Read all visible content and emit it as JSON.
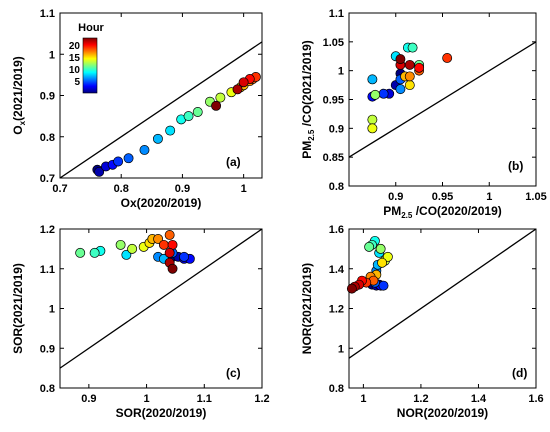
{
  "chart_data": [
    {
      "type": "scatter",
      "panel_label": "(a)",
      "xlabel": "Ox(2020/2019)",
      "ylabel": "O_x(2021/2019)",
      "xlim": [
        0.7,
        1.03
      ],
      "ylim": [
        0.7,
        1.1
      ],
      "xticks": [
        "0.7",
        "0.8",
        "0.9",
        "1"
      ],
      "yticks": [
        "0.7",
        "0.8",
        "0.9",
        "1",
        "1.1"
      ],
      "reference_line": "1:1",
      "colorbar": {
        "title": "Hour",
        "range": [
          0,
          23
        ],
        "ticks": [
          "5",
          "10",
          "15",
          "20"
        ],
        "colormap": [
          "#00007f",
          "#0000ff",
          "#007fff",
          "#00ffff",
          "#7fff7f",
          "#ffff00",
          "#ff7f00",
          "#ff0000",
          "#7f0000"
        ]
      },
      "points": [
        {
          "x": 0.761,
          "y": 0.72,
          "hour": 0
        },
        {
          "x": 0.764,
          "y": 0.715,
          "hour": 1
        },
        {
          "x": 0.775,
          "y": 0.728,
          "hour": 2
        },
        {
          "x": 0.786,
          "y": 0.732,
          "hour": 3
        },
        {
          "x": 0.795,
          "y": 0.74,
          "hour": 4
        },
        {
          "x": 0.812,
          "y": 0.748,
          "hour": 5
        },
        {
          "x": 0.838,
          "y": 0.768,
          "hour": 6
        },
        {
          "x": 0.86,
          "y": 0.795,
          "hour": 7
        },
        {
          "x": 0.88,
          "y": 0.815,
          "hour": 8
        },
        {
          "x": 0.898,
          "y": 0.842,
          "hour": 9
        },
        {
          "x": 0.91,
          "y": 0.85,
          "hour": 10
        },
        {
          "x": 0.925,
          "y": 0.86,
          "hour": 11
        },
        {
          "x": 0.945,
          "y": 0.885,
          "hour": 12
        },
        {
          "x": 0.962,
          "y": 0.895,
          "hour": 13
        },
        {
          "x": 0.98,
          "y": 0.908,
          "hour": 14
        },
        {
          "x": 0.995,
          "y": 0.92,
          "hour": 15
        },
        {
          "x": 1.0,
          "y": 0.925,
          "hour": 16
        },
        {
          "x": 1.01,
          "y": 0.935,
          "hour": 17
        },
        {
          "x": 1.015,
          "y": 0.94,
          "hour": 18
        },
        {
          "x": 1.02,
          "y": 0.945,
          "hour": 19
        },
        {
          "x": 1.01,
          "y": 0.94,
          "hour": 20
        },
        {
          "x": 1.0,
          "y": 0.932,
          "hour": 21
        },
        {
          "x": 0.99,
          "y": 0.915,
          "hour": 22
        },
        {
          "x": 0.955,
          "y": 0.875,
          "hour": 23
        }
      ]
    },
    {
      "type": "scatter",
      "panel_label": "(b)",
      "xlabel": "PM_2.5 /CO(2020/2019)",
      "ylabel": "PM_2.5 /CO(2021/2019)",
      "xlim": [
        0.85,
        1.05
      ],
      "ylim": [
        0.8,
        1.1
      ],
      "xticks": [
        "0.9",
        "0.95",
        "1",
        "1.05"
      ],
      "yticks": [
        "0.8",
        "0.85",
        "0.9",
        "0.95",
        "1",
        "1.05",
        "1.1"
      ],
      "reference_line": "1:1",
      "points": [
        {
          "x": 0.905,
          "y": 0.995,
          "hour": 0
        },
        {
          "x": 0.9,
          "y": 0.975,
          "hour": 1
        },
        {
          "x": 0.893,
          "y": 0.96,
          "hour": 2
        },
        {
          "x": 0.875,
          "y": 0.955,
          "hour": 3
        },
        {
          "x": 0.887,
          "y": 0.96,
          "hour": 4
        },
        {
          "x": 0.905,
          "y": 0.985,
          "hour": 5
        },
        {
          "x": 0.905,
          "y": 0.968,
          "hour": 6
        },
        {
          "x": 0.875,
          "y": 0.985,
          "hour": 7
        },
        {
          "x": 0.9,
          "y": 1.025,
          "hour": 8
        },
        {
          "x": 0.913,
          "y": 1.04,
          "hour": 9
        },
        {
          "x": 0.918,
          "y": 1.04,
          "hour": 10
        },
        {
          "x": 0.925,
          "y": 1.01,
          "hour": 11
        },
        {
          "x": 0.878,
          "y": 0.958,
          "hour": 12
        },
        {
          "x": 0.875,
          "y": 0.915,
          "hour": 13
        },
        {
          "x": 0.875,
          "y": 0.9,
          "hour": 14
        },
        {
          "x": 0.915,
          "y": 0.975,
          "hour": 15
        },
        {
          "x": 0.91,
          "y": 0.99,
          "hour": 16
        },
        {
          "x": 0.915,
          "y": 0.99,
          "hour": 17
        },
        {
          "x": 0.925,
          "y": 1.0,
          "hour": 18
        },
        {
          "x": 0.955,
          "y": 1.022,
          "hour": 19
        },
        {
          "x": 0.925,
          "y": 1.005,
          "hour": 20
        },
        {
          "x": 0.905,
          "y": 1.01,
          "hour": 21
        },
        {
          "x": 0.915,
          "y": 1.01,
          "hour": 22
        },
        {
          "x": 0.905,
          "y": 1.02,
          "hour": 23
        }
      ]
    },
    {
      "type": "scatter",
      "panel_label": "(c)",
      "xlabel": "SOR(2020/2019)",
      "ylabel": "SOR(2021/2019)",
      "xlim": [
        0.85,
        1.2
      ],
      "ylim": [
        0.8,
        1.2
      ],
      "xticks": [
        "0.9",
        "1",
        "1.1",
        "1.2"
      ],
      "yticks": [
        "0.8",
        "0.9",
        "1",
        "1.1",
        "1.2"
      ],
      "reference_line": "1:1",
      "points": [
        {
          "x": 1.045,
          "y": 1.13,
          "hour": 0
        },
        {
          "x": 1.055,
          "y": 1.13,
          "hour": 1
        },
        {
          "x": 1.065,
          "y": 1.125,
          "hour": 2
        },
        {
          "x": 1.075,
          "y": 1.125,
          "hour": 3
        },
        {
          "x": 1.065,
          "y": 1.13,
          "hour": 4
        },
        {
          "x": 1.045,
          "y": 1.14,
          "hour": 5
        },
        {
          "x": 1.02,
          "y": 1.13,
          "hour": 6
        },
        {
          "x": 1.03,
          "y": 1.125,
          "hour": 7
        },
        {
          "x": 0.965,
          "y": 1.135,
          "hour": 8
        },
        {
          "x": 0.92,
          "y": 1.145,
          "hour": 9
        },
        {
          "x": 0.91,
          "y": 1.14,
          "hour": 10
        },
        {
          "x": 0.885,
          "y": 1.14,
          "hour": 11
        },
        {
          "x": 0.955,
          "y": 1.16,
          "hour": 12
        },
        {
          "x": 0.975,
          "y": 1.15,
          "hour": 13
        },
        {
          "x": 0.995,
          "y": 1.155,
          "hour": 14
        },
        {
          "x": 1.005,
          "y": 1.165,
          "hour": 15
        },
        {
          "x": 1.01,
          "y": 1.175,
          "hour": 16
        },
        {
          "x": 1.02,
          "y": 1.175,
          "hour": 17
        },
        {
          "x": 1.04,
          "y": 1.185,
          "hour": 18
        },
        {
          "x": 1.03,
          "y": 1.16,
          "hour": 19
        },
        {
          "x": 1.045,
          "y": 1.16,
          "hour": 20
        },
        {
          "x": 1.04,
          "y": 1.14,
          "hour": 21
        },
        {
          "x": 1.04,
          "y": 1.115,
          "hour": 22
        },
        {
          "x": 1.045,
          "y": 1.1,
          "hour": 23
        }
      ]
    },
    {
      "type": "scatter",
      "panel_label": "(d)",
      "xlabel": "NOR(2020/2019)",
      "ylabel": "NOR(2021/2019)",
      "xlim": [
        0.95,
        1.6
      ],
      "ylim": [
        0.8,
        1.6
      ],
      "xticks": [
        "1",
        "1.2",
        "1.4",
        "1.6"
      ],
      "yticks": [
        "0.8",
        "1",
        "1.2",
        "1.4",
        "1.6"
      ],
      "reference_line": "1:1",
      "points": [
        {
          "x": 1.03,
          "y": 1.32,
          "hour": 0
        },
        {
          "x": 1.045,
          "y": 1.315,
          "hour": 1
        },
        {
          "x": 1.055,
          "y": 1.32,
          "hour": 2
        },
        {
          "x": 1.06,
          "y": 1.315,
          "hour": 3
        },
        {
          "x": 1.07,
          "y": 1.315,
          "hour": 4
        },
        {
          "x": 1.04,
          "y": 1.33,
          "hour": 5
        },
        {
          "x": 1.045,
          "y": 1.39,
          "hour": 6
        },
        {
          "x": 1.05,
          "y": 1.42,
          "hour": 7
        },
        {
          "x": 1.055,
          "y": 1.48,
          "hour": 8
        },
        {
          "x": 1.04,
          "y": 1.54,
          "hour": 9
        },
        {
          "x": 1.03,
          "y": 1.52,
          "hour": 10
        },
        {
          "x": 1.02,
          "y": 1.51,
          "hour": 11
        },
        {
          "x": 1.06,
          "y": 1.5,
          "hour": 12
        },
        {
          "x": 1.075,
          "y": 1.44,
          "hour": 13
        },
        {
          "x": 1.085,
          "y": 1.46,
          "hour": 14
        },
        {
          "x": 1.065,
          "y": 1.43,
          "hour": 15
        },
        {
          "x": 1.045,
          "y": 1.37,
          "hour": 16
        },
        {
          "x": 1.025,
          "y": 1.36,
          "hour": 17
        },
        {
          "x": 1.035,
          "y": 1.34,
          "hour": 18
        },
        {
          "x": 1.01,
          "y": 1.33,
          "hour": 19
        },
        {
          "x": 0.995,
          "y": 1.34,
          "hour": 20
        },
        {
          "x": 0.985,
          "y": 1.32,
          "hour": 21
        },
        {
          "x": 0.97,
          "y": 1.31,
          "hour": 22
        },
        {
          "x": 0.96,
          "y": 1.3,
          "hour": 23
        }
      ]
    }
  ]
}
